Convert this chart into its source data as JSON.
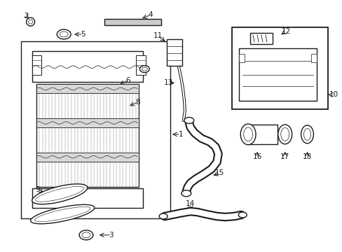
{
  "background_color": "#ffffff",
  "fig_width": 4.89,
  "fig_height": 3.6,
  "dpi": 100,
  "line_color": "#1a1a1a",
  "line_width": 1.0,
  "label_fontsize": 7.5,
  "label_color": "#1a1a1a"
}
